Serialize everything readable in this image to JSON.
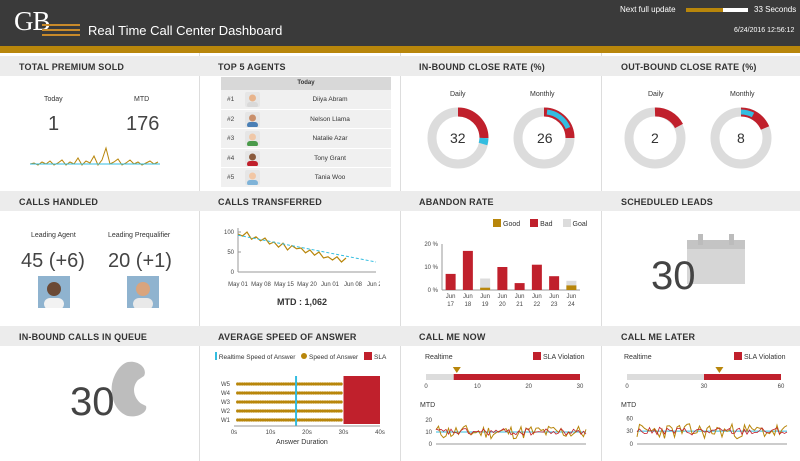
{
  "header": {
    "logo": "GB",
    "title": "Real Time Call Center Dashboard",
    "next_update_label": "Next full update",
    "next_update_value": "33  Seconds",
    "next_update_fraction": 0.6,
    "timestamp": "6/24/2016 12:56:12"
  },
  "colors": {
    "gold": "#b8860b",
    "red": "#c0202c",
    "cyan": "#33bde0",
    "gray": "#dcdcdc",
    "dark": "#3a3a3a"
  },
  "panels": {
    "premium": {
      "title": "TOTAL PREMIUM SOLD",
      "today_label": "Today",
      "today_value": "1",
      "mtd_label": "MTD",
      "mtd_value": "176"
    },
    "agents": {
      "title": "TOP 5 AGENTS",
      "header": "Today",
      "rows": [
        {
          "rank": "#1",
          "name": "Diiya Abram",
          "icon": "agent-photo-icon"
        },
        {
          "rank": "#2",
          "name": "Nelson Llama",
          "icon": "agent-photo-icon"
        },
        {
          "rank": "#3",
          "name": "Natalie Azar",
          "icon": "agent-photo-icon"
        },
        {
          "rank": "#4",
          "name": "Tony Grant",
          "icon": "agent-photo-icon"
        },
        {
          "rank": "#5",
          "name": "Tania Woo",
          "icon": "agent-photo-icon"
        }
      ]
    },
    "inbound_close": {
      "title": "IN-BOUND CLOSE RATE (%)",
      "daily_label": "Daily",
      "daily_value": "32",
      "monthly_label": "Monthly",
      "monthly_value": "26"
    },
    "outbound_close": {
      "title": "OUT-BOUND CLOSE RATE (%)",
      "daily_label": "Daily",
      "daily_value": "2",
      "monthly_label": "Monthly",
      "monthly_value": "8"
    },
    "calls_handled": {
      "title": "CALLS HANDLED",
      "agent_label": "Leading Agent",
      "agent_value": "45 (+6)",
      "preq_label": "Leading Prequalifier",
      "preq_value": "20 (+1)"
    },
    "calls_transferred": {
      "title": "CALLS TRANSFERRED",
      "mtd": "MTD : 1,062"
    },
    "abandon": {
      "title": "ABANDON RATE",
      "legend": [
        "Good",
        "Bad",
        "Goal"
      ]
    },
    "scheduled": {
      "title": "SCHEDULED LEADS",
      "value": "30",
      "icon": "calendar-icon"
    },
    "queue": {
      "title": "IN-BOUND CALLS IN QUEUE",
      "value": "30",
      "icon": "phone-icon"
    },
    "speed": {
      "title": "AVERAGE SPEED OF ANSWER",
      "legend_rt": "Realtime Speed of Answer",
      "legend_sa": "Speed of Answer",
      "legend_sla": "SLA",
      "xlabel": "Answer Duration"
    },
    "call_me_now": {
      "title": "CALL ME NOW",
      "sla_label": "SLA Violation",
      "realtime_label": "Realtime",
      "mtd_label": "MTD"
    },
    "call_me_later": {
      "title": "CALL ME LATER",
      "sla_label": "SLA Violation",
      "realtime_label": "Realtime",
      "mtd_label": "MTD"
    }
  },
  "chart_data": [
    {
      "type": "line",
      "title": "Calls Transferred",
      "x_ticks": [
        "May 01",
        "May 08",
        "May 15",
        "May 20",
        "Jun 01",
        "Jun 08",
        "Jun 20"
      ],
      "yticks": [
        0,
        50,
        100
      ],
      "ylim": [
        0,
        110
      ],
      "series": [
        {
          "values": [
            95,
            90,
            100,
            82,
            88,
            78,
            85,
            70,
            75,
            62,
            72,
            55,
            66,
            58,
            60,
            48,
            55,
            42,
            50,
            35,
            38,
            30,
            38,
            25,
            35
          ]
        }
      ],
      "trend": [
        92,
        25
      ]
    },
    {
      "type": "bar",
      "title": "Abandon Rate",
      "categories": [
        "Jun 17",
        "Jun 18",
        "Jun 19",
        "Jun 20",
        "Jun 21",
        "Jun 22",
        "Jun 23",
        "Jun 24"
      ],
      "yticks": [
        "0 %",
        "10 %",
        "20 %"
      ],
      "ylim": [
        0,
        20
      ],
      "series": [
        {
          "name": "Good",
          "values": [
            0,
            0,
            1,
            0,
            0,
            0,
            0,
            2
          ]
        },
        {
          "name": "Bad",
          "values": [
            7,
            17,
            0,
            10,
            3,
            11,
            6,
            0
          ]
        },
        {
          "name": "Goal",
          "values": [
            0,
            0,
            5,
            0,
            0,
            0,
            0,
            4
          ]
        }
      ]
    },
    {
      "type": "bar",
      "title": "Average Speed of Answer",
      "categories": [
        "W5",
        "W4",
        "W3",
        "W2",
        "W1"
      ],
      "x_ticks": [
        "0s",
        "10s",
        "20s",
        "30s",
        "40s"
      ],
      "xlim": [
        0,
        40
      ],
      "realtime_speed": 17,
      "sla_range": [
        30,
        40
      ]
    },
    {
      "type": "line",
      "title": "Call Me Now",
      "realtime_ticks": [
        "0",
        "10",
        "20",
        "30"
      ],
      "realtime_value": 6,
      "realtime_max": 30,
      "mtd_yticks": [
        0,
        10,
        20
      ],
      "mtd_ylim": [
        0,
        25
      ]
    },
    {
      "type": "line",
      "title": "Call Me Later",
      "realtime_ticks": [
        "0",
        "30",
        "60"
      ],
      "realtime_value": 36,
      "realtime_max": 60,
      "mtd_yticks": [
        0,
        30,
        60
      ],
      "mtd_ylim": [
        0,
        70
      ]
    }
  ]
}
